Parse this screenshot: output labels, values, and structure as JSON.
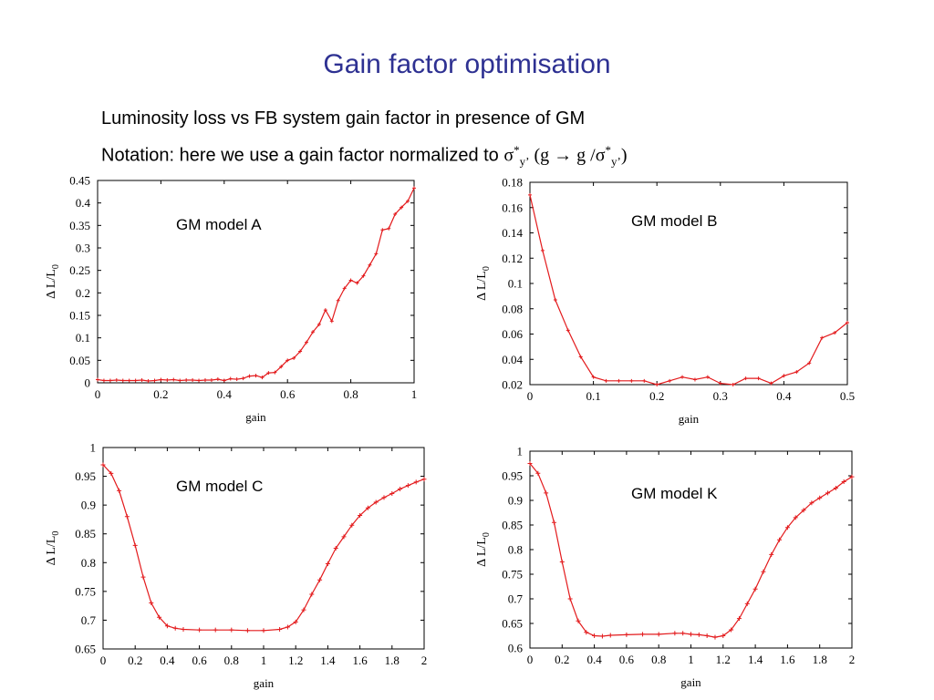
{
  "title": "Gain factor optimisation",
  "subtitle1": "Luminosity loss vs FB system gain factor in presence of GM",
  "subtitle2_text": "Notation: here we use a gain factor normalized to ",
  "subtitle2_sym": "σ",
  "subtitle2_star": "*",
  "subtitle2_sub": "y’",
  "subtitle2_paren_open": "  (g → g /σ",
  "subtitle2_paren_sub": "y’",
  "subtitle2_paren_close": ")",
  "colors": {
    "title": "#2e3192",
    "series": "#e31a1c"
  },
  "chart_data": [
    {
      "type": "line",
      "title": "",
      "annotation": "GM model A",
      "xlabel": "gain",
      "ylabel": "Δ L/L",
      "ylabel_sub": "0",
      "xlim": [
        0,
        1
      ],
      "ylim": [
        0,
        0.45
      ],
      "xticks": [
        "0",
        "0.2",
        "0.4",
        "0.6",
        "0.8",
        "1"
      ],
      "yticks": [
        "0",
        "0.05",
        "0.1",
        "0.15",
        "0.2",
        "0.25",
        "0.3",
        "0.35",
        "0.4",
        "0.45"
      ],
      "x": [
        0,
        0.02,
        0.04,
        0.06,
        0.08,
        0.1,
        0.12,
        0.14,
        0.16,
        0.18,
        0.2,
        0.22,
        0.24,
        0.26,
        0.28,
        0.3,
        0.32,
        0.34,
        0.36,
        0.38,
        0.4,
        0.42,
        0.44,
        0.46,
        0.48,
        0.5,
        0.52,
        0.54,
        0.56,
        0.58,
        0.6,
        0.62,
        0.64,
        0.66,
        0.68,
        0.7,
        0.72,
        0.74,
        0.76,
        0.78,
        0.8,
        0.82,
        0.84,
        0.86,
        0.88,
        0.9,
        0.92,
        0.94,
        0.96,
        0.98,
        1.0
      ],
      "y": [
        0.007,
        0.005,
        0.005,
        0.006,
        0.005,
        0.005,
        0.005,
        0.006,
        0.004,
        0.005,
        0.007,
        0.006,
        0.007,
        0.005,
        0.006,
        0.006,
        0.005,
        0.006,
        0.006,
        0.008,
        0.005,
        0.009,
        0.008,
        0.01,
        0.015,
        0.016,
        0.012,
        0.022,
        0.023,
        0.036,
        0.05,
        0.055,
        0.07,
        0.09,
        0.113,
        0.13,
        0.162,
        0.137,
        0.183,
        0.21,
        0.228,
        0.222,
        0.238,
        0.262,
        0.287,
        0.34,
        0.343,
        0.375,
        0.39,
        0.404,
        0.433
      ]
    },
    {
      "type": "line",
      "title": "",
      "annotation": "GM model B",
      "xlabel": "gain",
      "ylabel": "Δ L/L",
      "ylabel_sub": "0",
      "xlim": [
        0,
        0.5
      ],
      "ylim": [
        0.02,
        0.18
      ],
      "xticks": [
        "0",
        "0.1",
        "0.2",
        "0.3",
        "0.4",
        "0.5"
      ],
      "yticks": [
        "0.02",
        "0.04",
        "0.06",
        "0.08",
        "0.1",
        "0.12",
        "0.14",
        "0.16",
        "0.18"
      ],
      "x": [
        0,
        0.02,
        0.04,
        0.06,
        0.08,
        0.1,
        0.12,
        0.14,
        0.16,
        0.18,
        0.2,
        0.22,
        0.24,
        0.26,
        0.28,
        0.3,
        0.32,
        0.34,
        0.36,
        0.38,
        0.4,
        0.42,
        0.44,
        0.46,
        0.48,
        0.5
      ],
      "y": [
        0.17,
        0.126,
        0.087,
        0.063,
        0.042,
        0.026,
        0.023,
        0.023,
        0.023,
        0.023,
        0.02,
        0.023,
        0.026,
        0.024,
        0.026,
        0.021,
        0.02,
        0.025,
        0.025,
        0.021,
        0.027,
        0.03,
        0.037,
        0.057,
        0.061,
        0.069
      ]
    },
    {
      "type": "line",
      "title": "",
      "annotation": "GM model C",
      "xlabel": "gain",
      "ylabel": "Δ L/L",
      "ylabel_sub": "0",
      "xlim": [
        0,
        2
      ],
      "ylim": [
        0.65,
        1
      ],
      "xticks": [
        "0",
        "0.2",
        "0.4",
        "0.6",
        "0.8",
        "1",
        "1.2",
        "1.4",
        "1.6",
        "1.8",
        "2"
      ],
      "yticks": [
        "0.65",
        "0.7",
        "0.75",
        "0.8",
        "0.85",
        "0.9",
        "0.95",
        "1"
      ],
      "x": [
        0,
        0.05,
        0.1,
        0.15,
        0.2,
        0.25,
        0.3,
        0.35,
        0.4,
        0.45,
        0.5,
        0.6,
        0.7,
        0.8,
        0.9,
        1.0,
        1.1,
        1.15,
        1.2,
        1.25,
        1.3,
        1.35,
        1.4,
        1.45,
        1.5,
        1.55,
        1.6,
        1.65,
        1.7,
        1.75,
        1.8,
        1.85,
        1.9,
        1.95,
        2.0
      ],
      "y": [
        0.97,
        0.955,
        0.925,
        0.88,
        0.83,
        0.775,
        0.73,
        0.705,
        0.69,
        0.686,
        0.684,
        0.683,
        0.683,
        0.683,
        0.682,
        0.682,
        0.684,
        0.688,
        0.697,
        0.718,
        0.745,
        0.77,
        0.798,
        0.825,
        0.845,
        0.865,
        0.882,
        0.895,
        0.905,
        0.913,
        0.92,
        0.928,
        0.934,
        0.94,
        0.945
      ]
    },
    {
      "type": "line",
      "title": "",
      "annotation": "GM model K",
      "xlabel": "gain",
      "ylabel": "Δ L/L",
      "ylabel_sub": "0",
      "xlim": [
        0,
        2
      ],
      "ylim": [
        0.6,
        1
      ],
      "xticks": [
        "0",
        "0.2",
        "0.4",
        "0.6",
        "0.8",
        "1",
        "1.2",
        "1.4",
        "1.6",
        "1.8",
        "2"
      ],
      "yticks": [
        "0.6",
        "0.65",
        "0.7",
        "0.75",
        "0.8",
        "0.85",
        "0.9",
        "0.95",
        "1"
      ],
      "x": [
        0,
        0.05,
        0.1,
        0.15,
        0.2,
        0.25,
        0.3,
        0.35,
        0.4,
        0.45,
        0.5,
        0.6,
        0.7,
        0.8,
        0.9,
        0.95,
        1.0,
        1.05,
        1.1,
        1.15,
        1.2,
        1.25,
        1.3,
        1.35,
        1.4,
        1.45,
        1.5,
        1.55,
        1.6,
        1.65,
        1.7,
        1.75,
        1.8,
        1.85,
        1.9,
        1.95,
        2.0
      ],
      "y": [
        0.975,
        0.955,
        0.915,
        0.855,
        0.775,
        0.7,
        0.655,
        0.632,
        0.625,
        0.624,
        0.626,
        0.627,
        0.628,
        0.628,
        0.63,
        0.63,
        0.628,
        0.627,
        0.625,
        0.622,
        0.625,
        0.637,
        0.66,
        0.69,
        0.72,
        0.755,
        0.79,
        0.82,
        0.845,
        0.865,
        0.88,
        0.895,
        0.905,
        0.915,
        0.925,
        0.938,
        0.948
      ]
    }
  ]
}
